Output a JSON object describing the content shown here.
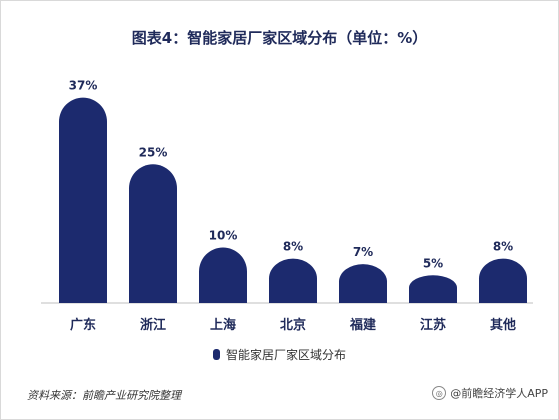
{
  "chart_data": {
    "type": "bar",
    "title": "图表4：智能家居厂家区域分布（单位：%）",
    "categories": [
      "广东",
      "浙江",
      "上海",
      "北京",
      "福建",
      "江苏",
      "其他"
    ],
    "series": [
      {
        "name": "智能家居厂家区域分布",
        "values": [
          37,
          25,
          10,
          8,
          7,
          5,
          8
        ]
      }
    ],
    "value_labels": [
      "37%",
      "25%",
      "10%",
      "8%",
      "7%",
      "5%",
      "8%"
    ],
    "ylim": [
      0,
      40
    ],
    "grid": false,
    "legend_position": "bottom",
    "bar_color": "#1c2a6e"
  },
  "source_text": "资料来源：前瞻产业研究院整理",
  "brand_text": "@前瞻经济学人APP"
}
